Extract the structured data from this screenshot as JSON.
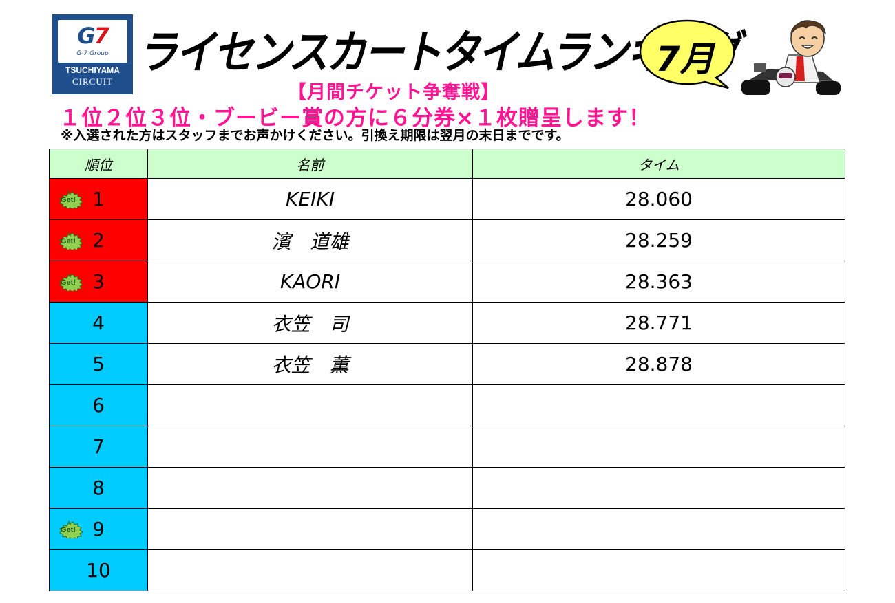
{
  "logo": {
    "brand": "G7",
    "group": "G-7 Group",
    "line1": "TSUCHIYAMA",
    "line2": "CIRCUIT"
  },
  "title": "ライセンスカートタイムランキング",
  "month": "7月",
  "subtitle": "【月間チケット争奪戦】",
  "prize": "１位２位３位・ブービー賞の方に６分券×１枚贈呈します！",
  "note": "※入選された方はスタッフまでお声かけください。引換え期限は翌月の末日までです。",
  "table": {
    "headers": [
      "順位",
      "名前",
      "タイム"
    ],
    "rows": [
      {
        "rank": "1",
        "name": "KEIKI",
        "time": "28.060",
        "get": true,
        "top": true
      },
      {
        "rank": "2",
        "name": "濱　道雄",
        "time": "28.259",
        "get": true,
        "top": true
      },
      {
        "rank": "3",
        "name": "KAORI",
        "time": "28.363",
        "get": true,
        "top": true
      },
      {
        "rank": "4",
        "name": "衣笠　司",
        "time": "28.771",
        "get": false,
        "top": false
      },
      {
        "rank": "5",
        "name": "衣笠　薫",
        "time": "28.878",
        "get": false,
        "top": false
      },
      {
        "rank": "6",
        "name": "",
        "time": "",
        "get": false,
        "top": false
      },
      {
        "rank": "7",
        "name": "",
        "time": "",
        "get": false,
        "top": false
      },
      {
        "rank": "8",
        "name": "",
        "time": "",
        "get": false,
        "top": false
      },
      {
        "rank": "9",
        "name": "",
        "time": "",
        "get": true,
        "top": false
      },
      {
        "rank": "10",
        "name": "",
        "time": "",
        "get": false,
        "top": false
      }
    ]
  },
  "badge_text": "Get!",
  "colors": {
    "top_rank": "#ff0000",
    "other_rank": "#00ccff",
    "header": "#ccffcc",
    "accent_pink": "#ff1493",
    "bubble": "#ffff66"
  }
}
